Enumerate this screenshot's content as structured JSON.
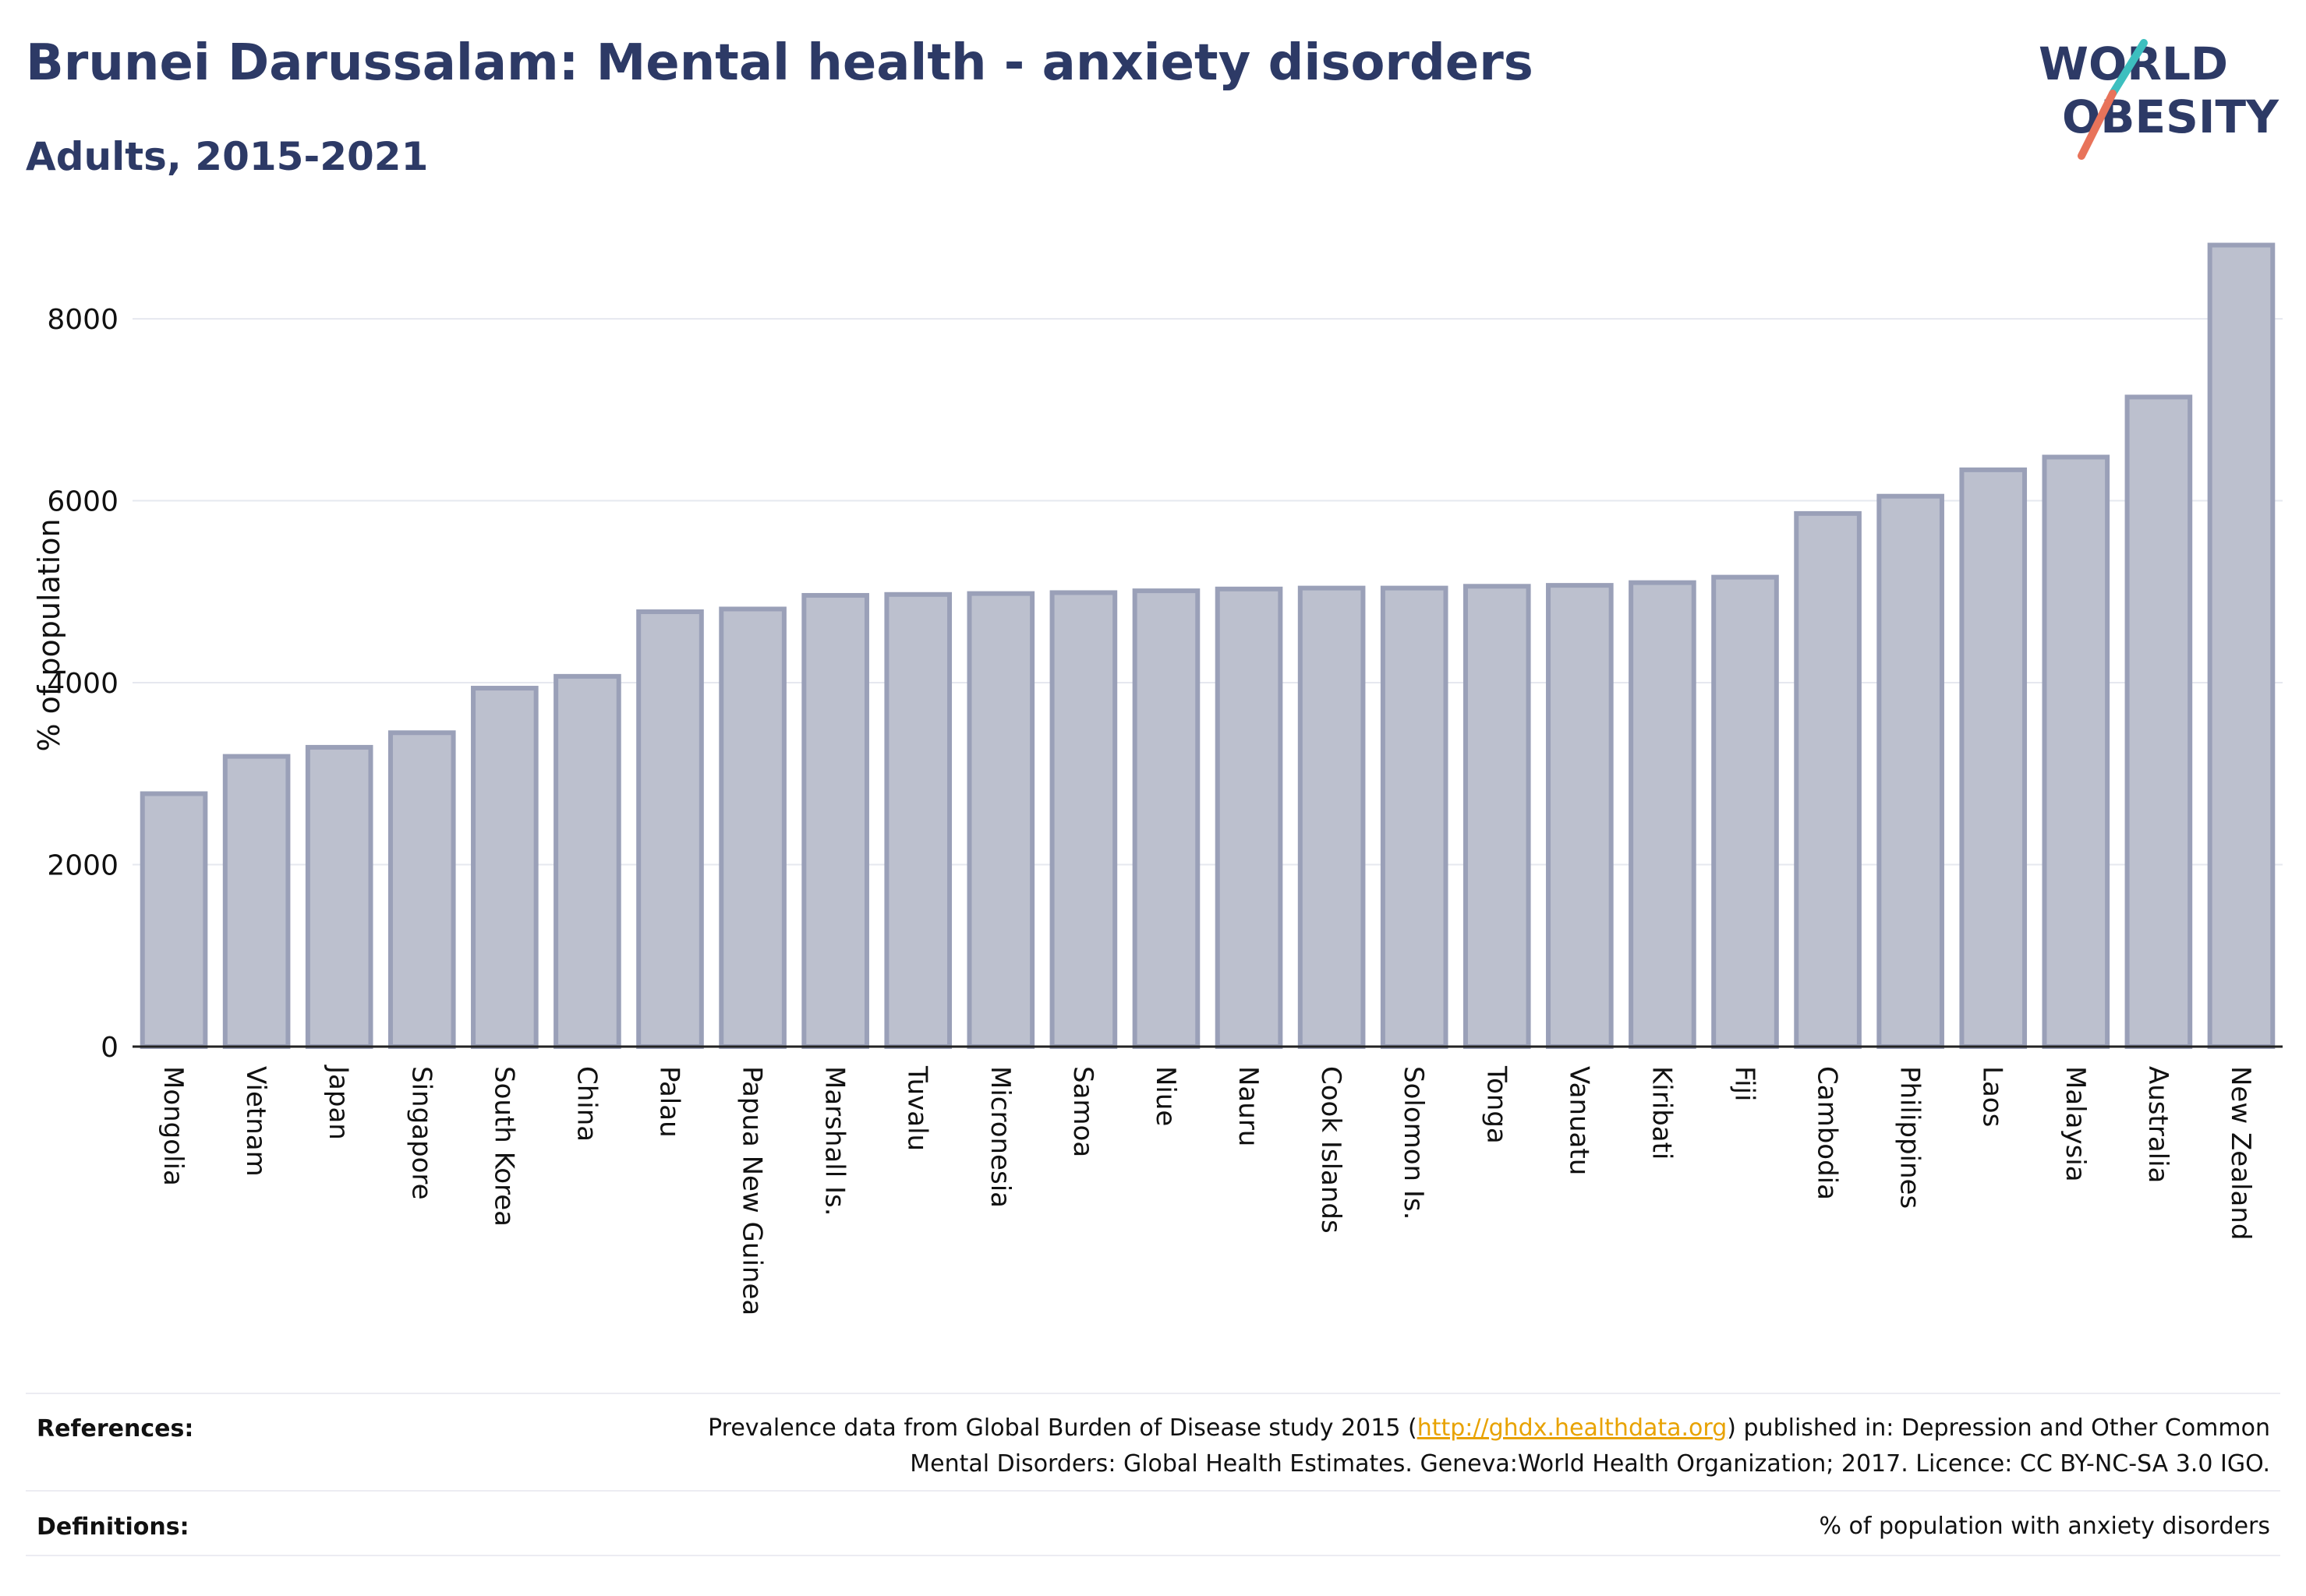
{
  "header": {
    "title": "Brunei Darussalam: Mental health - anxiety disorders",
    "subtitle": "Adults, 2015-2021"
  },
  "logo": {
    "line1": "WORLD",
    "line2": "OBESITY",
    "text_color": "#2d3a66",
    "slash_colors": [
      "#3dbfbf",
      "#e8735a"
    ]
  },
  "chart_data": {
    "type": "bar",
    "ylabel": "% of population",
    "xlabel": "",
    "ylim": [
      0,
      8900
    ],
    "yticks": [
      0,
      2000,
      4000,
      6000,
      8000
    ],
    "grid": true,
    "bar_color": "#bcc0ce",
    "bar_border_color": "#9aa0b8",
    "categories": [
      "Mongolia",
      "Vietnam",
      "Japan",
      "Singapore",
      "South Korea",
      "China",
      "Palau",
      "Papua New Guinea",
      "Marshall Is.",
      "Tuvalu",
      "Micronesia",
      "Samoa",
      "Niue",
      "Nauru",
      "Cook Islands",
      "Solomon Is.",
      "Tonga",
      "Vanuatu",
      "Kiribati",
      "Fiji",
      "Cambodia",
      "Philippines",
      "Laos",
      "Malaysia",
      "Australia",
      "New Zealand"
    ],
    "values": [
      2780,
      3190,
      3290,
      3450,
      3940,
      4070,
      4780,
      4810,
      4960,
      4970,
      4980,
      4990,
      5010,
      5030,
      5040,
      5040,
      5060,
      5070,
      5100,
      5160,
      5860,
      6050,
      6340,
      6480,
      7140,
      8810
    ]
  },
  "footer": {
    "references_label": "References:",
    "references_text_before": "Prevalence data from Global Burden of Disease study 2015 (",
    "references_link": "http://ghdx.healthdata.org",
    "references_text_after": ") published in: Depression and Other Common",
    "references_text_line2": "Mental Disorders: Global Health Estimates. Geneva:World Health Organization; 2017. Licence: CC BY-NC-SA 3.0 IGO.",
    "definitions_label": "Definitions:",
    "definitions_text": "% of population with anxiety disorders"
  }
}
